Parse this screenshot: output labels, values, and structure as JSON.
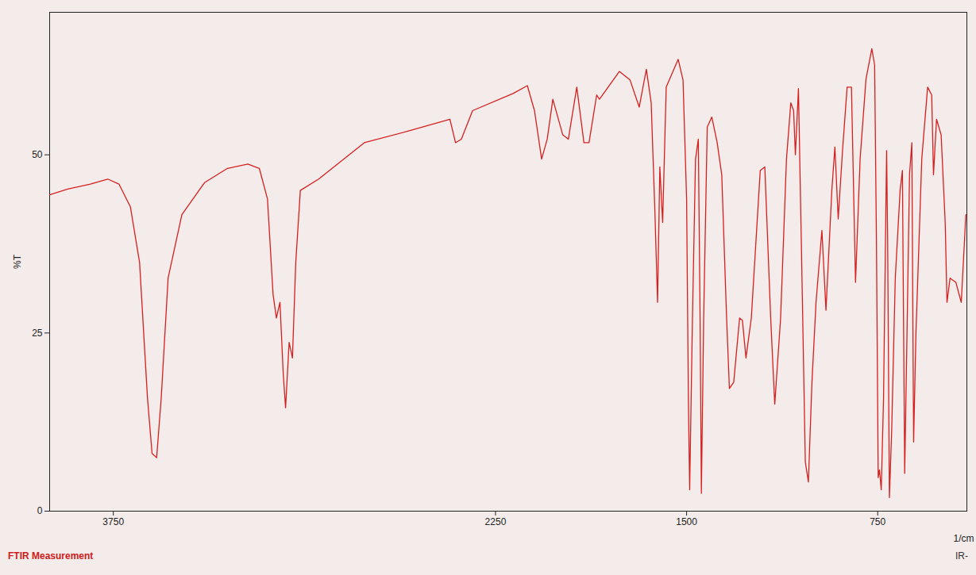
{
  "chart_data": {
    "type": "line",
    "caption": "FTIR Measurement",
    "annotations": [
      "IR-"
    ],
    "x_label": "1/cm",
    "y_label": "%T",
    "xlim": [
      4000,
      400
    ],
    "xticks": [
      3750,
      2250,
      1500,
      750
    ],
    "ylim": [
      0,
      70
    ],
    "yticks": [
      0,
      25,
      50
    ],
    "grid": false,
    "color": "#d62020",
    "x": [
      4000,
      3929,
      3840,
      3772,
      3728,
      3683,
      3647,
      3616,
      3598,
      3580,
      3562,
      3535,
      3481,
      3392,
      3302,
      3222,
      3177,
      3145,
      3123,
      3110,
      3096,
      3083,
      3074,
      3060,
      3047,
      3034,
      3016,
      2944,
      2765,
      2586,
      2429,
      2407,
      2384,
      2340,
      2181,
      2125,
      2097,
      2069,
      2047,
      2025,
      1986,
      1964,
      1931,
      1903,
      1883,
      1853,
      1842,
      1764,
      1722,
      1686,
      1658,
      1639,
      1625,
      1614,
      1605,
      1594,
      1580,
      1533,
      1514,
      1500,
      1493,
      1488,
      1477,
      1465,
      1454,
      1447,
      1442,
      1433,
      1419,
      1401,
      1380,
      1362,
      1343,
      1332,
      1315,
      1292,
      1281,
      1267,
      1246,
      1211,
      1193,
      1170,
      1154,
      1131,
      1108,
      1091,
      1080,
      1073,
      1061,
      1050,
      1034,
      1022,
      1008,
      992,
      969,
      953,
      930,
      918,
      905,
      888,
      870,
      853,
      837,
      819,
      796,
      773,
      762,
      755,
      748,
      743,
      736,
      727,
      715,
      711,
      704,
      695,
      681,
      662,
      653,
      644,
      635,
      625,
      616,
      609,
      600,
      577,
      554,
      538,
      531,
      519,
      501,
      485,
      478,
      466,
      443,
      422,
      404
    ],
    "values": [
      44.4,
      45.2,
      45.9,
      46.6,
      45.9,
      42.7,
      34.9,
      15.9,
      8.1,
      7.5,
      15.9,
      32.7,
      41.6,
      46.1,
      48.1,
      48.7,
      48.1,
      43.8,
      30.4,
      27.1,
      29.3,
      19.2,
      14.5,
      23.7,
      21.5,
      34.9,
      45.0,
      46.6,
      51.7,
      53.4,
      55.0,
      51.7,
      52.2,
      56.2,
      58.6,
      59.7,
      56.2,
      49.4,
      52.2,
      57.8,
      52.8,
      52.2,
      59.5,
      51.7,
      51.7,
      58.4,
      57.8,
      61.7,
      60.5,
      56.7,
      62.0,
      57.3,
      42.7,
      29.3,
      48.3,
      40.5,
      59.5,
      63.4,
      60.5,
      43.8,
      15.9,
      3.0,
      27.1,
      49.4,
      52.2,
      27.1,
      2.5,
      27.1,
      53.9,
      55.3,
      51.7,
      47.2,
      27.1,
      17.2,
      18.1,
      27.1,
      26.8,
      21.5,
      27.1,
      47.8,
      48.3,
      27.1,
      15.0,
      27.1,
      49.4,
      57.3,
      56.2,
      50.0,
      59.3,
      38.3,
      6.9,
      4.1,
      18.1,
      29.3,
      39.4,
      28.2,
      45.0,
      51.1,
      41.0,
      50.6,
      59.5,
      59.5,
      32.1,
      49.4,
      60.6,
      64.9,
      62.6,
      38.3,
      4.7,
      5.8,
      3.0,
      15.9,
      50.6,
      38.3,
      1.9,
      11.4,
      32.7,
      45.0,
      47.8,
      5.3,
      24.8,
      47.3,
      51.7,
      9.7,
      24.8,
      49.4,
      59.5,
      58.4,
      47.2,
      55.0,
      52.8,
      40.5,
      29.3,
      32.7,
      32.1,
      29.3,
      41.6
    ]
  }
}
